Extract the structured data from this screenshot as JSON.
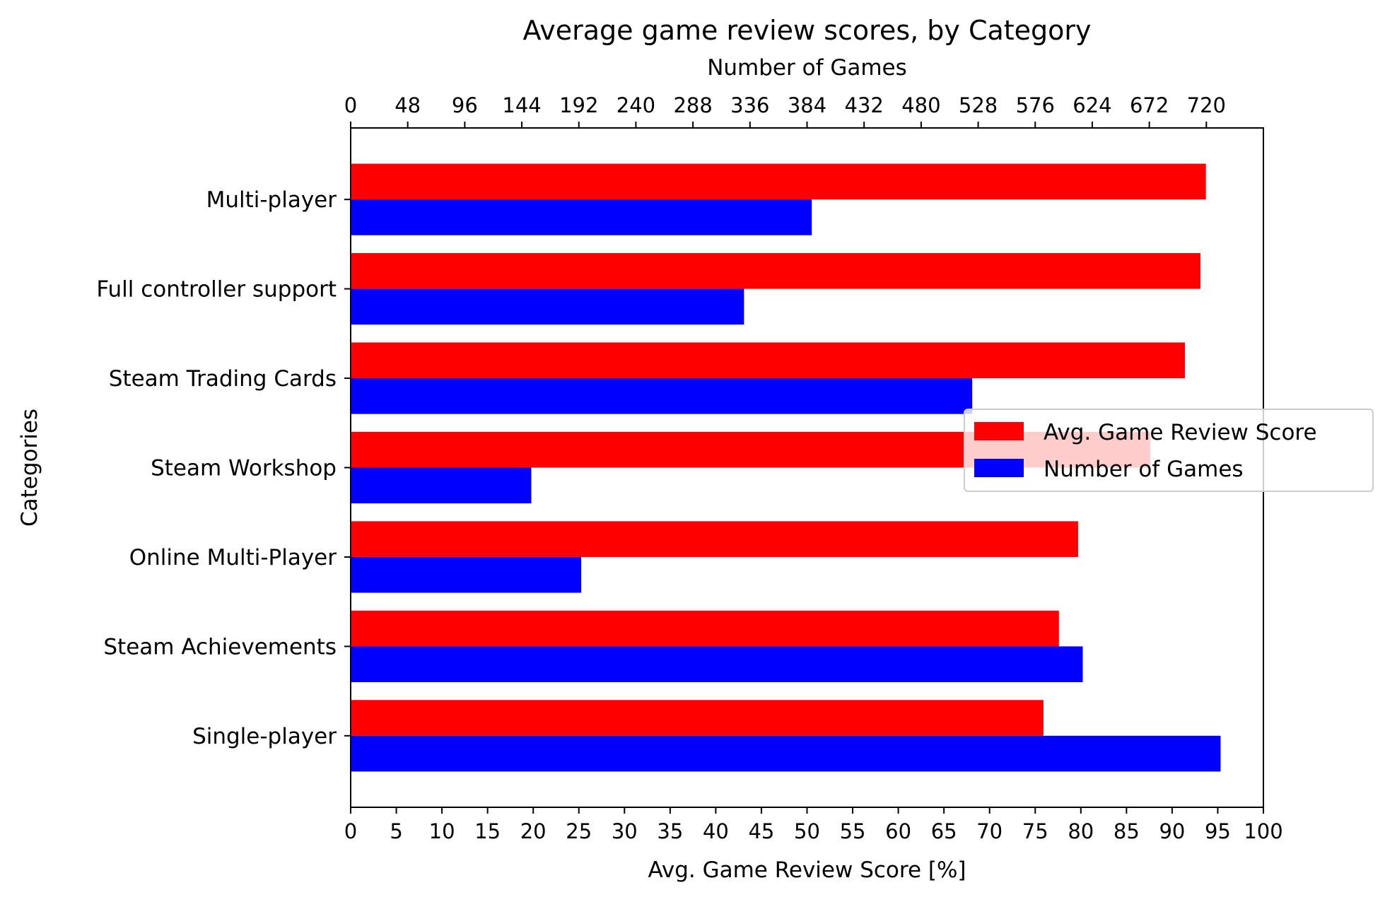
{
  "chart_data": {
    "type": "bar",
    "orientation": "horizontal",
    "title": "Average game review scores, by Category",
    "ylabel": "Categories",
    "categories": [
      "Multi-player",
      "Full controller support",
      "Steam Trading Cards",
      "Steam Workshop",
      "Online Multi-Player",
      "Steam Achievements",
      "Single-player"
    ],
    "series": [
      {
        "name": "Avg. Game Review Score",
        "color": "#ff0000",
        "axis": "bottom",
        "values": [
          93.7,
          93.1,
          91.4,
          87.6,
          79.7,
          77.6,
          75.9
        ]
      },
      {
        "name": "Number of Games",
        "color": "#0000ff",
        "axis": "top",
        "values": [
          388,
          331,
          523,
          152,
          194,
          616,
          732
        ]
      }
    ],
    "x_bottom": {
      "label": "Avg. Game Review Score [%]",
      "lim": [
        0,
        100
      ],
      "ticks": [
        0,
        5,
        10,
        15,
        20,
        25,
        30,
        35,
        40,
        45,
        50,
        55,
        60,
        65,
        70,
        75,
        80,
        85,
        90,
        95,
        100
      ]
    },
    "x_top": {
      "label": "Number of Games",
      "lim": [
        0,
        768
      ],
      "ticks": [
        0,
        48,
        96,
        144,
        192,
        240,
        288,
        336,
        384,
        432,
        480,
        528,
        576,
        624,
        672,
        720
      ]
    },
    "legend": {
      "placement": "right",
      "entries": [
        "Avg. Game Review Score",
        "Number of Games"
      ]
    },
    "grid": false
  }
}
